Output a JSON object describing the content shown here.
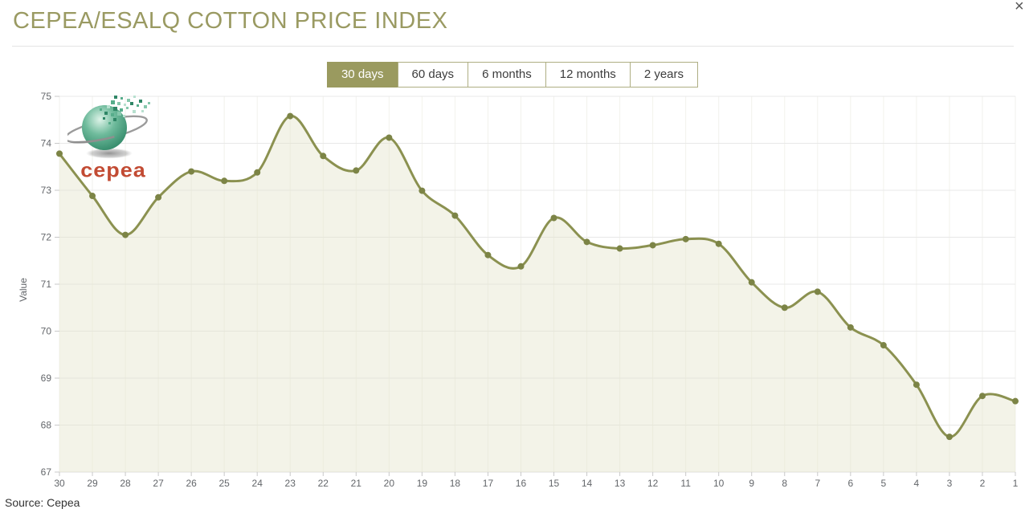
{
  "page": {
    "title": "CEPEA/ESALQ COTTON PRICE INDEX",
    "close_label": "×",
    "source": "Source: Cepea"
  },
  "range_buttons": [
    {
      "label": "30 days",
      "selected": true
    },
    {
      "label": "60 days",
      "selected": false
    },
    {
      "label": "6 months",
      "selected": false
    },
    {
      "label": "12 months",
      "selected": false
    },
    {
      "label": "2 years",
      "selected": false
    }
  ],
  "logo": {
    "text": "cepea"
  },
  "colors": {
    "title": "#9a9a62",
    "button_selected_bg": "#9a9a5f",
    "button_border": "#aeae83",
    "line": "#8b9150",
    "marker": "#7c8446",
    "area_fill": "rgba(228,228,204,0.45)",
    "grid_h": "#e8e8e8",
    "grid_v": "#f2f2ec",
    "axis_line": "#dcdcdc",
    "tick": "#c9c9c9",
    "axis_text": "#63666a",
    "logo_red": "#c24b33",
    "logo_green": "#3f9e7d"
  },
  "chart_data": {
    "type": "area",
    "title": "CEPEA/ESALQ COTTON PRICE INDEX",
    "x": [
      30,
      29,
      28,
      27,
      26,
      25,
      24,
      23,
      22,
      21,
      20,
      19,
      18,
      17,
      16,
      15,
      14,
      13,
      12,
      11,
      10,
      9,
      8,
      7,
      6,
      5,
      4,
      3,
      2,
      1
    ],
    "series": [
      {
        "name": "Value",
        "values": [
          73.78,
          72.88,
          72.05,
          72.85,
          73.4,
          73.2,
          73.38,
          74.58,
          73.73,
          73.42,
          74.12,
          72.99,
          72.46,
          71.62,
          71.38,
          72.41,
          71.9,
          71.76,
          71.83,
          71.96,
          71.86,
          71.04,
          70.5,
          70.84,
          70.08,
          69.7,
          68.86,
          67.75,
          68.62,
          68.51
        ]
      }
    ],
    "xlabel": "",
    "ylabel": "Value",
    "ylim": [
      67,
      75
    ],
    "yticks": [
      67,
      68,
      69,
      70,
      71,
      72,
      73,
      74,
      75
    ],
    "grid": true,
    "legend": false,
    "smooth": true
  }
}
